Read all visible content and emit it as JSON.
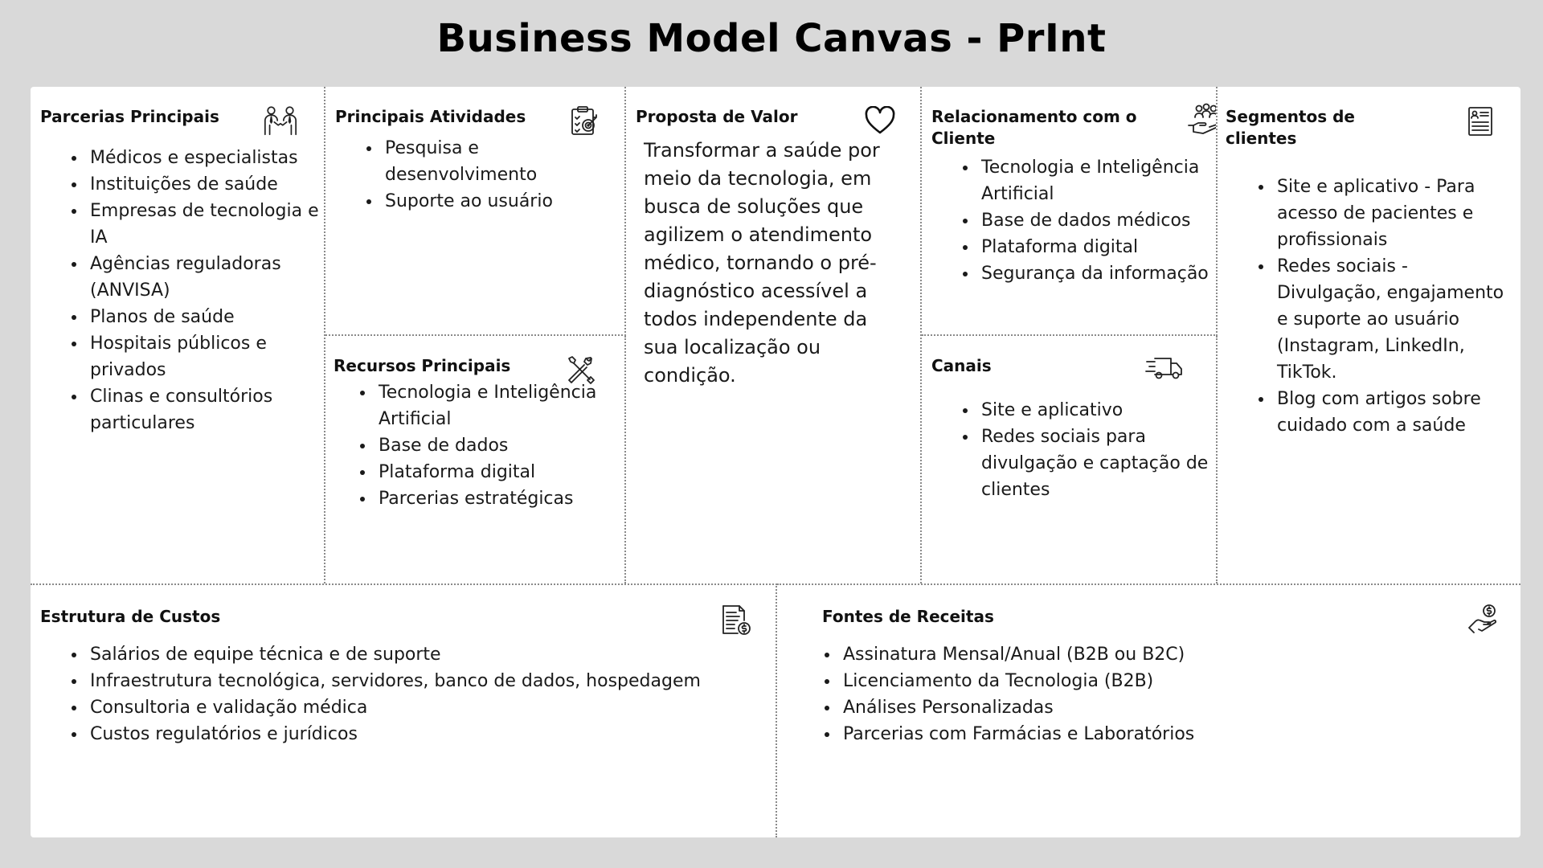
{
  "title": "Business Model Canvas - PrInt",
  "parcerias": {
    "title": "Parcerias Principais",
    "icon": "handshake-people-icon",
    "items": [
      "Médicos e especialistas",
      "Instituições de saúde",
      "Empresas de tecnologia e IA",
      "Agências reguladoras (ANVISA)",
      "Planos de saúde",
      "Hospitais públicos e privados",
      "Clinas e consultórios particulares"
    ]
  },
  "atividades": {
    "title": "Principais Atividades",
    "icon": "clipboard-target-icon",
    "items": [
      "Pesquisa e desenvolvimento",
      "Suporte ao usuário"
    ]
  },
  "recursos": {
    "title": "Recursos Principais",
    "icon": "tools-icon",
    "items": [
      "Tecnologia e Inteligência Artificial",
      "Base de dados",
      "Plataforma digital",
      "Parcerias estratégicas"
    ]
  },
  "proposta": {
    "title": "Proposta de Valor",
    "icon": "heart-icon",
    "text": "Transformar a saúde por meio da tecnologia, em busca de soluções que agilizem o atendimento médico, tornando o pré-diagnóstico acessível a todos independente da sua localização ou condição."
  },
  "relacionamento": {
    "title": "Relacionamento com o Cliente",
    "icon": "hand-people-icon",
    "items": [
      "Tecnologia e Inteligência Artificial",
      "Base de dados médicos",
      "Plataforma digital",
      "Segurança da informação"
    ]
  },
  "canais": {
    "title": "Canais",
    "icon": "delivery-truck-icon",
    "items": [
      "Site e aplicativo",
      "Redes sociais para divulgação e captação de clientes"
    ]
  },
  "segmentos": {
    "title": "Segmentos de clientes",
    "icon": "profile-document-icon",
    "items": [
      "Site e aplicativo - Para acesso de pacientes e profissionais",
      "Redes sociais - Divulgação, engajamento e suporte ao usuário (Instagram, LinkedIn, TikTok.",
      "Blog com artigos sobre cuidado com a saúde"
    ]
  },
  "custos": {
    "title": "Estrutura de Custos",
    "icon": "invoice-dollar-icon",
    "items": [
      "Salários de equipe técnica e de suporte",
      "Infraestrutura tecnológica, servidores, banco de dados, hospedagem",
      "Consultoria e validação médica",
      "Custos regulatórios e jurídicos"
    ]
  },
  "receitas": {
    "title": "Fontes de Receitas",
    "icon": "hand-coin-icon",
    "items": [
      "Assinatura Mensal/Anual (B2B ou B2C)",
      "Licenciamento da Tecnologia (B2B)",
      "Análises Personalizadas",
      "Parcerias com Farmácias e Laboratórios"
    ]
  }
}
